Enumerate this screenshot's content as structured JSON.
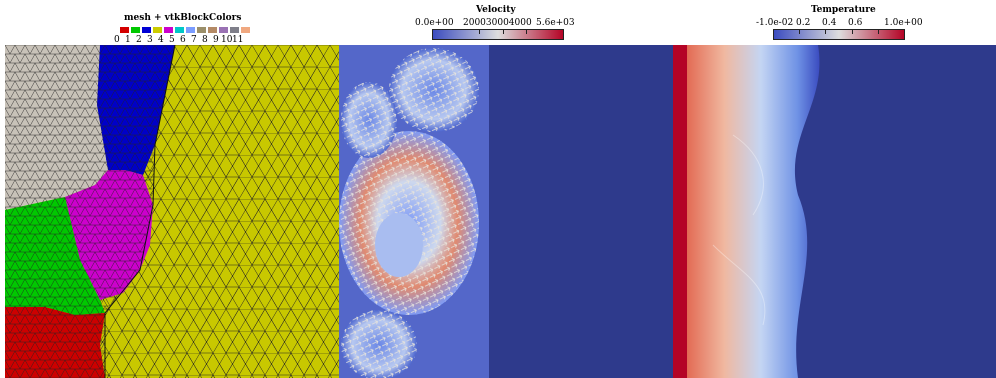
{
  "legends": {
    "mesh": {
      "title": "mesh + vtkBlockColors",
      "blocks": [
        {
          "label": "0",
          "color": "#d40000"
        },
        {
          "label": "1",
          "color": "#00c800"
        },
        {
          "label": "2",
          "color": "#0000d4"
        },
        {
          "label": "3",
          "color": "#cccc00"
        },
        {
          "label": "4",
          "color": "#cc00cc"
        },
        {
          "label": "5",
          "color": "#00c8c8"
        },
        {
          "label": "6",
          "color": "#7a9cff"
        },
        {
          "label": "7",
          "color": "#9b8f6a"
        },
        {
          "label": "8",
          "color": "#b48a66"
        },
        {
          "label": "9",
          "color": "#9a72b4"
        },
        {
          "label": "10",
          "color": "#7f7f8a"
        },
        {
          "label": "11",
          "color": "#f0a880"
        }
      ]
    },
    "velocity": {
      "title": "Velocity",
      "min_label": "0.0e+00",
      "mid_label": "200030004000",
      "max_label": "5.6e+03",
      "range": [
        0,
        5600
      ]
    },
    "temperature": {
      "title": "Temperature",
      "min_label": "-1.0e-02",
      "labels": [
        "0.2",
        "0.4",
        "0.6"
      ],
      "max_label": "1.0e+00",
      "range": [
        -0.01,
        1.0
      ]
    }
  },
  "colors": {
    "mesh_yellow": "#c8c800",
    "mesh_gray": "#c8c2b8",
    "mesh_green": "#00c800",
    "mesh_magenta": "#cc00cc",
    "mesh_blue": "#0000c8",
    "mesh_red": "#cc0000",
    "field_background": "#2e3a8c",
    "colormap_low": "#3b4cc0",
    "colormap_mid": "#dddddd",
    "colormap_high": "#b40426"
  }
}
